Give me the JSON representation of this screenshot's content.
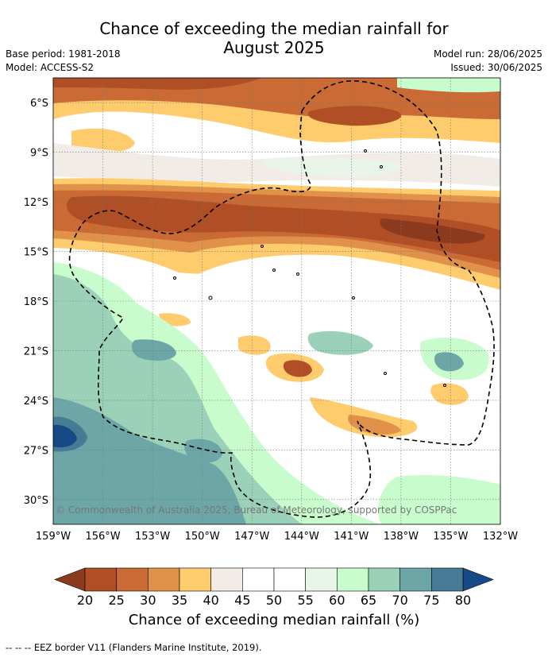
{
  "title": {
    "line1": "Chance of exceeding the median rainfall for",
    "line2": "August 2025"
  },
  "meta": {
    "base_period": "Base period: 1981-2018",
    "model": "Model: ACCESS-S2",
    "model_run": "Model run: 28/06/2025",
    "issued": "Issued: 30/06/2025"
  },
  "map": {
    "lon_range": [
      -159,
      -132
    ],
    "lat_range": [
      -31.5,
      -4.5
    ],
    "lat_ticks": [
      {
        "value": -6,
        "label": "6°S"
      },
      {
        "value": -9,
        "label": "9°S"
      },
      {
        "value": -12,
        "label": "12°S"
      },
      {
        "value": -15,
        "label": "15°S"
      },
      {
        "value": -18,
        "label": "18°S"
      },
      {
        "value": -21,
        "label": "21°S"
      },
      {
        "value": -24,
        "label": "24°S"
      },
      {
        "value": -27,
        "label": "27°S"
      },
      {
        "value": -30,
        "label": "30°S"
      }
    ],
    "lon_ticks": [
      {
        "value": -159,
        "label": "159°W"
      },
      {
        "value": -156,
        "label": "156°W"
      },
      {
        "value": -153,
        "label": "153°W"
      },
      {
        "value": -150,
        "label": "150°W"
      },
      {
        "value": -147,
        "label": "147°W"
      },
      {
        "value": -144,
        "label": "144°W"
      },
      {
        "value": -141,
        "label": "141°W"
      },
      {
        "value": -138,
        "label": "138°W"
      },
      {
        "value": -135,
        "label": "135°W"
      },
      {
        "value": -132,
        "label": "132°W"
      }
    ],
    "copyright": "© Commonwealth of Australia 2025, Bureau of Meteorology, supported by COSPPac",
    "background_color": "#ffffff",
    "gridlines": true
  },
  "colorbar": {
    "label": "Chance of exceeding median rainfall (%)",
    "ticks": [
      "20",
      "25",
      "30",
      "35",
      "40",
      "45",
      "50",
      "55",
      "60",
      "65",
      "70",
      "75",
      "80"
    ],
    "under_color": "#8b3a1e",
    "over_color": "#154a86",
    "colors": [
      "#b04f25",
      "#ca6a35",
      "#e0924a",
      "#fecb6d",
      "#f1ece6",
      "#ffffff",
      "#ffffff",
      "#e9f5e8",
      "#c8fccc",
      "#9bd1b8",
      "#6ca6a6",
      "#457b94"
    ]
  },
  "footer": "--  --  -- EEZ border V11 (Flanders Marine Institute, 2019)."
}
